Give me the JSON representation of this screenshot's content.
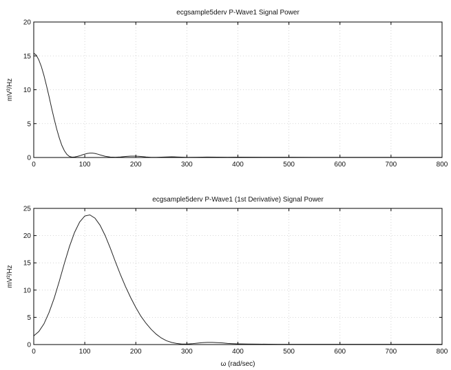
{
  "chart_data": [
    {
      "type": "line",
      "title": "ecgsample5derv P-Wave1 Signal Power",
      "xlabel": "",
      "ylabel": "mV²/Hz",
      "xlim": [
        0,
        800
      ],
      "ylim": [
        0,
        20
      ],
      "xticks": [
        "0",
        "100",
        "200",
        "300",
        "400",
        "500",
        "600",
        "700",
        "800"
      ],
      "yticks": [
        "0",
        "5",
        "10",
        "15",
        "20"
      ],
      "grid": true,
      "series": [
        {
          "x": [
            0,
            5,
            10,
            15,
            20,
            25,
            30,
            35,
            40,
            45,
            50,
            55,
            60,
            65,
            70,
            75,
            80,
            85,
            90,
            95,
            100,
            105,
            110,
            115,
            120,
            125,
            130,
            140,
            150,
            160,
            170,
            180,
            190,
            200,
            210,
            220,
            230,
            240,
            250,
            260,
            270,
            280,
            290,
            300,
            320,
            340,
            360,
            380,
            400,
            450,
            500,
            550,
            600,
            650,
            700,
            750,
            800
          ],
          "y": [
            15.4,
            15.1,
            14.4,
            13.4,
            12.1,
            10.6,
            9.0,
            7.3,
            5.7,
            4.2,
            2.9,
            1.8,
            1.0,
            0.45,
            0.15,
            0.05,
            0.08,
            0.15,
            0.25,
            0.38,
            0.5,
            0.6,
            0.65,
            0.65,
            0.6,
            0.5,
            0.38,
            0.18,
            0.06,
            0.04,
            0.08,
            0.15,
            0.2,
            0.2,
            0.15,
            0.08,
            0.03,
            0.02,
            0.05,
            0.08,
            0.1,
            0.08,
            0.05,
            0.03,
            0.04,
            0.06,
            0.05,
            0.04,
            0.05,
            0.04,
            0.04,
            0.03,
            0.03,
            0.03,
            0.02,
            0.02,
            0.02
          ]
        }
      ]
    },
    {
      "type": "line",
      "title": "ecgsample5derv P-Wave1 (1st Derivative) Signal Power",
      "xlabel": "ω (rad/sec)",
      "ylabel": "mV²/Hz",
      "xlim": [
        0,
        800
      ],
      "ylim": [
        0,
        25
      ],
      "xticks": [
        "0",
        "100",
        "200",
        "300",
        "400",
        "500",
        "600",
        "700",
        "800"
      ],
      "yticks": [
        "0",
        "5",
        "10",
        "15",
        "20",
        "25"
      ],
      "grid": true,
      "series": [
        {
          "x": [
            0,
            10,
            20,
            30,
            40,
            50,
            60,
            70,
            80,
            90,
            100,
            110,
            120,
            130,
            140,
            150,
            160,
            170,
            180,
            190,
            200,
            210,
            220,
            230,
            240,
            250,
            260,
            270,
            280,
            290,
            300,
            310,
            320,
            330,
            340,
            350,
            360,
            370,
            380,
            390,
            400,
            420,
            440,
            460,
            480,
            500,
            550,
            600,
            650,
            700,
            750,
            800
          ],
          "y": [
            1.6,
            2.4,
            3.8,
            5.9,
            8.5,
            11.6,
            14.9,
            18.0,
            20.6,
            22.5,
            23.6,
            23.8,
            23.2,
            21.9,
            20.0,
            17.7,
            15.2,
            12.8,
            10.6,
            8.6,
            6.8,
            5.2,
            3.9,
            2.8,
            1.9,
            1.2,
            0.7,
            0.4,
            0.2,
            0.1,
            0.1,
            0.15,
            0.25,
            0.35,
            0.4,
            0.4,
            0.35,
            0.3,
            0.2,
            0.15,
            0.12,
            0.1,
            0.08,
            0.06,
            0.05,
            0.05,
            0.05,
            0.05,
            0.05,
            0.05,
            0.05,
            0.05
          ]
        }
      ]
    }
  ]
}
